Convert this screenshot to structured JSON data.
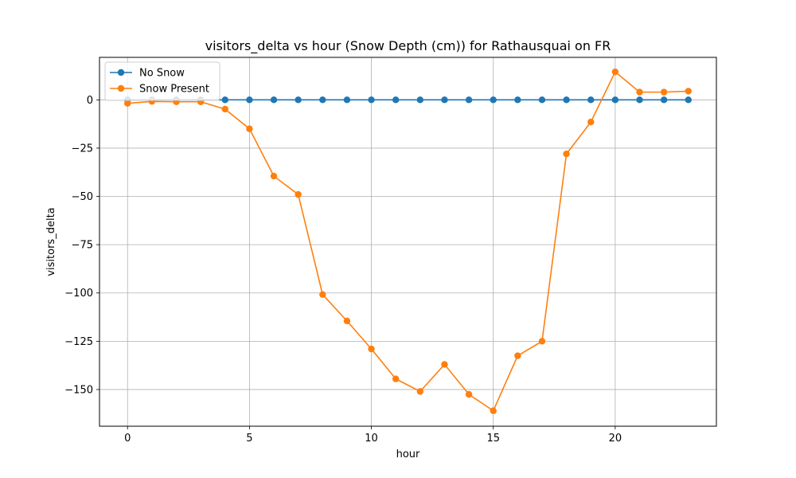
{
  "chart_data": {
    "type": "line",
    "title": "visitors_delta vs hour (Snow Depth (cm)) for Rathausquai on FR",
    "xlabel": "hour",
    "ylabel": "visitors_delta",
    "xlim": [
      -1.15,
      24.15
    ],
    "ylim": [
      -169,
      22
    ],
    "xticks": [
      0,
      5,
      10,
      15,
      20
    ],
    "yticks": [
      0,
      -25,
      -50,
      -75,
      -100,
      -125,
      -150
    ],
    "ytick_labels": [
      "0",
      "−25",
      "−50",
      "−75",
      "−100",
      "−125",
      "−150"
    ],
    "grid": true,
    "legend_position": "upper-left",
    "x": [
      0,
      1,
      2,
      3,
      4,
      5,
      6,
      7,
      8,
      9,
      10,
      11,
      12,
      13,
      14,
      15,
      16,
      17,
      18,
      19,
      20,
      21,
      22,
      23
    ],
    "series": [
      {
        "name": "No Snow",
        "color": "#1f77b4",
        "values": [
          0,
          0,
          0,
          0,
          0,
          0,
          0,
          0,
          0,
          0,
          0,
          0,
          0,
          0,
          0,
          0,
          0,
          0,
          0,
          0,
          0,
          0,
          0,
          0
        ]
      },
      {
        "name": "Snow Present",
        "color": "#ff7f0e",
        "values": [
          -1.8,
          -0.8,
          -1.0,
          -1.0,
          -4.8,
          -15.0,
          -39.5,
          -49.0,
          -100.8,
          -114.5,
          -129.0,
          -144.5,
          -151.0,
          -137.0,
          -152.5,
          -161.0,
          -132.5,
          -125.0,
          -28.0,
          -11.5,
          14.5,
          4.0,
          4.0,
          4.5
        ]
      }
    ]
  }
}
